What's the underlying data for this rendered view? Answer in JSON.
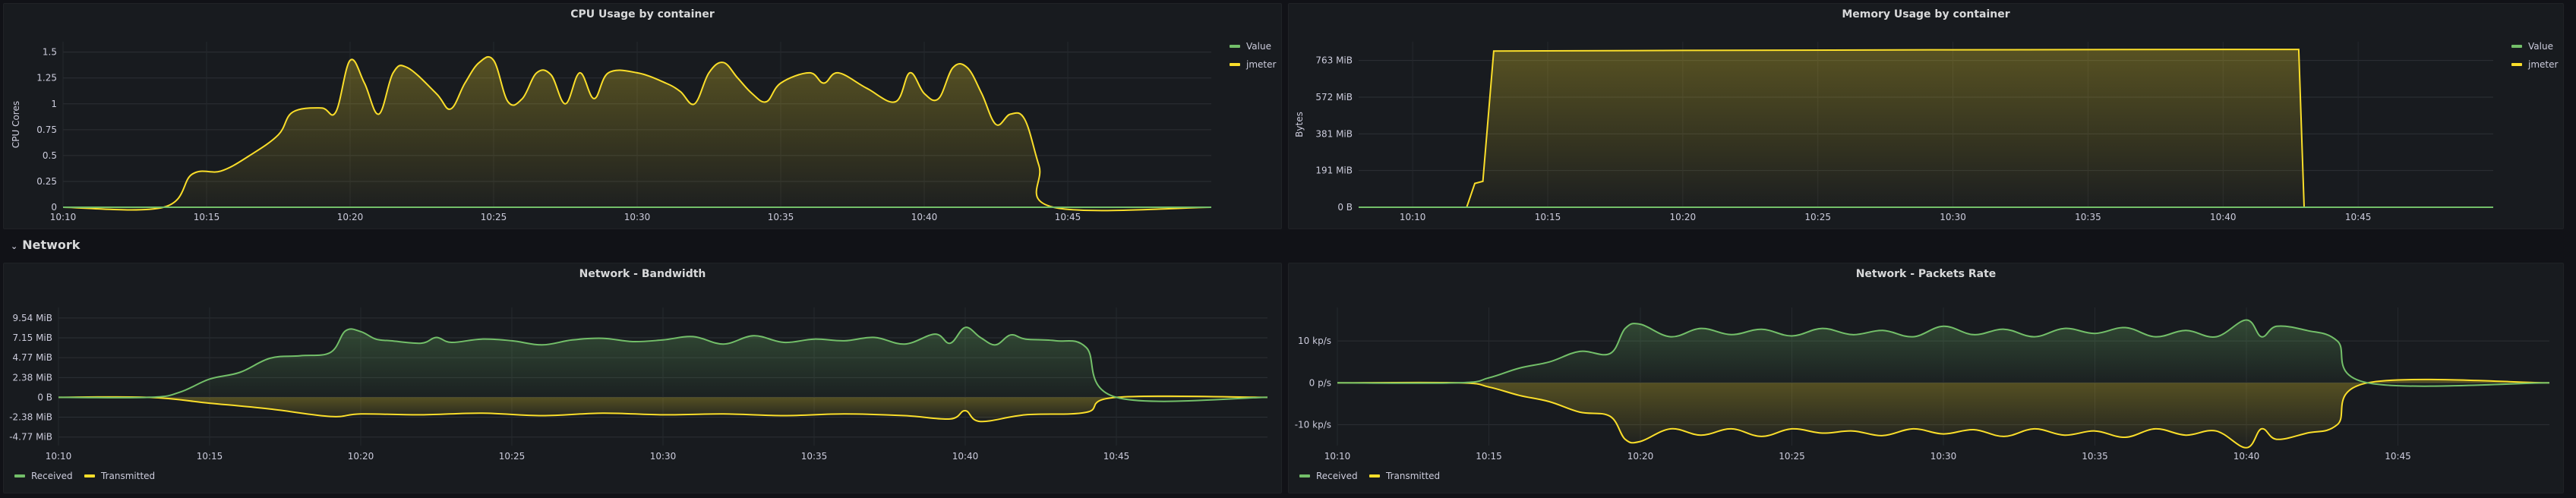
{
  "section_network": {
    "title": "Network"
  },
  "panels": [
    {
      "id": "cpu",
      "title": "CPU Usage by container",
      "ylabel": "CPU Cores",
      "yticks": [
        "0",
        "0.25",
        "0.5",
        "0.75",
        "1",
        "1.25",
        "1.5"
      ],
      "xticks": [
        "10:10",
        "10:15",
        "10:20",
        "10:25",
        "10:30",
        "10:35",
        "10:40",
        "10:45"
      ],
      "legend": [
        {
          "name": "Value",
          "color": "#73bf69"
        },
        {
          "name": "jmeter",
          "color": "#fade2a"
        }
      ]
    },
    {
      "id": "mem",
      "title": "Memory Usage by container",
      "ylabel": "Bytes",
      "yticks": [
        "0 B",
        "191 MiB",
        "381 MiB",
        "572 MiB",
        "763 MiB"
      ],
      "xticks": [
        "10:10",
        "10:15",
        "10:20",
        "10:25",
        "10:30",
        "10:35",
        "10:40",
        "10:45"
      ],
      "legend": [
        {
          "name": "Value",
          "color": "#73bf69"
        },
        {
          "name": "jmeter",
          "color": "#fade2a"
        }
      ]
    },
    {
      "id": "bw",
      "title": "Network - Bandwidth",
      "ylabel": "",
      "yticks": [
        "-4.77 MiB",
        "-2.38 MiB",
        "0 B",
        "2.38 MiB",
        "4.77 MiB",
        "7.15 MiB",
        "9.54 MiB"
      ],
      "xticks": [
        "10:10",
        "10:15",
        "10:20",
        "10:25",
        "10:30",
        "10:35",
        "10:40",
        "10:45"
      ],
      "legend": [
        {
          "name": "Received",
          "color": "#73bf69"
        },
        {
          "name": "Transmitted",
          "color": "#fade2a"
        }
      ]
    },
    {
      "id": "pkt",
      "title": "Network - Packets Rate",
      "ylabel": "",
      "yticks": [
        "-10 kp/s",
        "0 p/s",
        "10 kp/s"
      ],
      "xticks": [
        "10:10",
        "10:15",
        "10:20",
        "10:25",
        "10:30",
        "10:35",
        "10:40",
        "10:45"
      ],
      "legend": [
        {
          "name": "Received",
          "color": "#73bf69"
        },
        {
          "name": "Transmitted",
          "color": "#fade2a"
        }
      ]
    }
  ],
  "chart_data": [
    {
      "type": "area",
      "title": "CPU Usage by container",
      "ylabel": "CPU Cores",
      "ylim": [
        0,
        1.6
      ],
      "xlim": [
        "10:10",
        "10:50"
      ],
      "series": [
        {
          "name": "Value",
          "color": "#73bf69",
          "points": [
            [
              "10:10",
              0
            ],
            [
              "10:50",
              0
            ]
          ]
        },
        {
          "name": "jmeter",
          "color": "#fade2a",
          "points": [
            [
              "10:10",
              0
            ],
            [
              "10:13.5",
              0
            ],
            [
              "10:14.5",
              0.32
            ],
            [
              "10:15.5",
              0.35
            ],
            [
              "10:16.5",
              0.5
            ],
            [
              "10:17.5",
              0.7
            ],
            [
              "10:18",
              0.92
            ],
            [
              "10:19",
              0.96
            ],
            [
              "10:19.5",
              0.92
            ],
            [
              "10:20",
              1.42
            ],
            [
              "10:20.5",
              1.2
            ],
            [
              "10:21",
              0.9
            ],
            [
              "10:21.5",
              1.3
            ],
            [
              "10:22",
              1.35
            ],
            [
              "10:23",
              1.1
            ],
            [
              "10:23.5",
              0.95
            ],
            [
              "10:24",
              1.2
            ],
            [
              "10:24.5",
              1.4
            ],
            [
              "10:25",
              1.42
            ],
            [
              "10:25.5",
              1.02
            ],
            [
              "10:26",
              1.05
            ],
            [
              "10:26.5",
              1.3
            ],
            [
              "10:27",
              1.28
            ],
            [
              "10:27.5",
              1.0
            ],
            [
              "10:28",
              1.3
            ],
            [
              "10:28.5",
              1.05
            ],
            [
              "10:29",
              1.3
            ],
            [
              "10:30",
              1.3
            ],
            [
              "10:31",
              1.2
            ],
            [
              "10:31.5",
              1.12
            ],
            [
              "10:32",
              1.0
            ],
            [
              "10:32.5",
              1.3
            ],
            [
              "10:33",
              1.4
            ],
            [
              "10:33.5",
              1.25
            ],
            [
              "10:34",
              1.1
            ],
            [
              "10:34.5",
              1.02
            ],
            [
              "10:35",
              1.2
            ],
            [
              "10:36",
              1.3
            ],
            [
              "10:36.5",
              1.2
            ],
            [
              "10:37",
              1.3
            ],
            [
              "10:38",
              1.15
            ],
            [
              "10:39",
              1.02
            ],
            [
              "10:39.5",
              1.3
            ],
            [
              "10:40",
              1.1
            ],
            [
              "10:40.5",
              1.05
            ],
            [
              "10:41",
              1.35
            ],
            [
              "10:41.5",
              1.35
            ],
            [
              "10:42",
              1.1
            ],
            [
              "10:42.5",
              0.8
            ],
            [
              "10:43",
              0.9
            ],
            [
              "10:43.5",
              0.85
            ],
            [
              "10:44",
              0.4
            ],
            [
              "10:44.5",
              0
            ],
            [
              "10:50",
              0
            ]
          ]
        }
      ]
    },
    {
      "type": "area",
      "title": "Memory Usage by container",
      "ylabel": "Bytes",
      "ylim": [
        0,
        860
      ],
      "unit": "MiB",
      "xlim": [
        "10:08",
        "10:50"
      ],
      "series": [
        {
          "name": "Value",
          "color": "#73bf69",
          "points": [
            [
              "10:08",
              0
            ],
            [
              "10:50",
              0
            ]
          ]
        },
        {
          "name": "jmeter",
          "color": "#fade2a",
          "points": [
            [
              "10:08",
              0
            ],
            [
              "10:12",
              0
            ],
            [
              "10:12.3",
              124
            ],
            [
              "10:12.6",
              135
            ],
            [
              "10:13",
              812
            ],
            [
              "10:20",
              815
            ],
            [
              "10:30",
              818
            ],
            [
              "10:40",
              820
            ],
            [
              "10:42.8",
              820
            ],
            [
              "10:43",
              0
            ],
            [
              "10:50",
              0
            ]
          ]
        }
      ]
    },
    {
      "type": "area",
      "title": "Network - Bandwidth",
      "ylim": [
        -5.8,
        10.8
      ],
      "unit": "MiB",
      "xlim": [
        "10:10",
        "10:50"
      ],
      "series": [
        {
          "name": "Received",
          "color": "#73bf69",
          "points": [
            [
              "10:10",
              0
            ],
            [
              "10:13",
              0
            ],
            [
              "10:14",
              0.6
            ],
            [
              "10:15",
              2.2
            ],
            [
              "10:16",
              3
            ],
            [
              "10:17",
              4.7
            ],
            [
              "10:18",
              5.0
            ],
            [
              "10:19",
              5.4
            ],
            [
              "10:19.5",
              8.0
            ],
            [
              "10:20",
              7.9
            ],
            [
              "10:20.5",
              7.0
            ],
            [
              "10:21",
              6.8
            ],
            [
              "10:22",
              6.5
            ],
            [
              "10:22.5",
              7.2
            ],
            [
              "10:23",
              6.6
            ],
            [
              "10:24",
              7.0
            ],
            [
              "10:25",
              6.8
            ],
            [
              "10:26",
              6.3
            ],
            [
              "10:27",
              6.9
            ],
            [
              "10:28",
              7.1
            ],
            [
              "10:29",
              6.7
            ],
            [
              "10:30",
              6.9
            ],
            [
              "10:31",
              7.3
            ],
            [
              "10:32",
              6.4
            ],
            [
              "10:33",
              7.4
            ],
            [
              "10:34",
              6.6
            ],
            [
              "10:35",
              7.0
            ],
            [
              "10:36",
              6.8
            ],
            [
              "10:37",
              7.2
            ],
            [
              "10:38",
              6.4
            ],
            [
              "10:39",
              7.6
            ],
            [
              "10:39.5",
              6.5
            ],
            [
              "10:40",
              8.4
            ],
            [
              "10:40.5",
              7.2
            ],
            [
              "10:41",
              6.3
            ],
            [
              "10:41.5",
              7.5
            ],
            [
              "10:42",
              7.0
            ],
            [
              "10:43",
              6.8
            ],
            [
              "10:44",
              6.0
            ],
            [
              "10:45",
              0
            ],
            [
              "10:50",
              0
            ]
          ]
        },
        {
          "name": "Transmitted",
          "color": "#fade2a",
          "points": [
            [
              "10:10",
              0
            ],
            [
              "10:13",
              0
            ],
            [
              "10:15",
              -0.7
            ],
            [
              "10:17",
              -1.4
            ],
            [
              "10:19",
              -2.3
            ],
            [
              "10:20",
              -2.0
            ],
            [
              "10:22",
              -2.1
            ],
            [
              "10:24",
              -1.9
            ],
            [
              "10:26",
              -2.2
            ],
            [
              "10:28",
              -1.9
            ],
            [
              "10:30",
              -2.1
            ],
            [
              "10:32",
              -2.0
            ],
            [
              "10:34",
              -2.2
            ],
            [
              "10:36",
              -2.0
            ],
            [
              "10:38",
              -2.2
            ],
            [
              "10:39.5",
              -2.6
            ],
            [
              "10:40",
              -1.6
            ],
            [
              "10:40.5",
              -2.9
            ],
            [
              "10:42",
              -2.1
            ],
            [
              "10:44",
              -1.8
            ],
            [
              "10:45",
              0
            ],
            [
              "10:50",
              0
            ]
          ]
        }
      ]
    },
    {
      "type": "area",
      "title": "Network - Packets Rate",
      "ylim": [
        -15,
        18
      ],
      "unit": "kp/s",
      "xlim": [
        "10:10",
        "10:50"
      ],
      "series": [
        {
          "name": "Received",
          "color": "#73bf69",
          "points": [
            [
              "10:10",
              0
            ],
            [
              "10:14",
              0
            ],
            [
              "10:15",
              1.2
            ],
            [
              "10:16",
              3.5
            ],
            [
              "10:17",
              5.0
            ],
            [
              "10:18",
              7.5
            ],
            [
              "10:19",
              7.0
            ],
            [
              "10:19.5",
              13.0
            ],
            [
              "10:20",
              14.0
            ],
            [
              "10:21",
              11.0
            ],
            [
              "10:22",
              13.0
            ],
            [
              "10:23",
              11.5
            ],
            [
              "10:24",
              12.8
            ],
            [
              "10:25",
              11.2
            ],
            [
              "10:26",
              13.0
            ],
            [
              "10:27",
              11.5
            ],
            [
              "10:28",
              12.5
            ],
            [
              "10:29",
              11.0
            ],
            [
              "10:30",
              13.5
            ],
            [
              "10:31",
              11.5
            ],
            [
              "10:32",
              12.8
            ],
            [
              "10:33",
              11.0
            ],
            [
              "10:34",
              13.0
            ],
            [
              "10:35",
              11.8
            ],
            [
              "10:36",
              13.2
            ],
            [
              "10:37",
              11.0
            ],
            [
              "10:38",
              12.5
            ],
            [
              "10:39",
              11.0
            ],
            [
              "10:40",
              15.0
            ],
            [
              "10:40.5",
              11.0
            ],
            [
              "10:41",
              13.5
            ],
            [
              "10:42",
              12.5
            ],
            [
              "10:43",
              10.0
            ],
            [
              "10:44",
              0
            ],
            [
              "10:50",
              0
            ]
          ]
        },
        {
          "name": "Transmitted",
          "color": "#fade2a",
          "points": [
            [
              "10:10",
              0
            ],
            [
              "10:14",
              0
            ],
            [
              "10:15",
              -1.0
            ],
            [
              "10:16",
              -3.0
            ],
            [
              "10:17",
              -4.5
            ],
            [
              "10:18",
              -7.0
            ],
            [
              "10:19",
              -8.0
            ],
            [
              "10:19.5",
              -13.5
            ],
            [
              "10:20",
              -14.0
            ],
            [
              "10:21",
              -11.0
            ],
            [
              "10:22",
              -12.5
            ],
            [
              "10:23",
              -11.0
            ],
            [
              "10:24",
              -12.8
            ],
            [
              "10:25",
              -11.0
            ],
            [
              "10:26",
              -12.0
            ],
            [
              "10:27",
              -11.5
            ],
            [
              "10:28",
              -12.6
            ],
            [
              "10:29",
              -11.0
            ],
            [
              "10:30",
              -12.2
            ],
            [
              "10:31",
              -11.2
            ],
            [
              "10:32",
              -12.8
            ],
            [
              "10:33",
              -11.0
            ],
            [
              "10:34",
              -12.5
            ],
            [
              "10:35",
              -11.5
            ],
            [
              "10:36",
              -13.0
            ],
            [
              "10:37",
              -11.0
            ],
            [
              "10:38",
              -12.5
            ],
            [
              "10:39",
              -11.5
            ],
            [
              "10:40",
              -15.5
            ],
            [
              "10:40.5",
              -11.0
            ],
            [
              "10:41",
              -13.5
            ],
            [
              "10:42",
              -12.0
            ],
            [
              "10:43",
              -10.0
            ],
            [
              "10:44",
              0
            ],
            [
              "10:50",
              0
            ]
          ]
        }
      ]
    }
  ]
}
